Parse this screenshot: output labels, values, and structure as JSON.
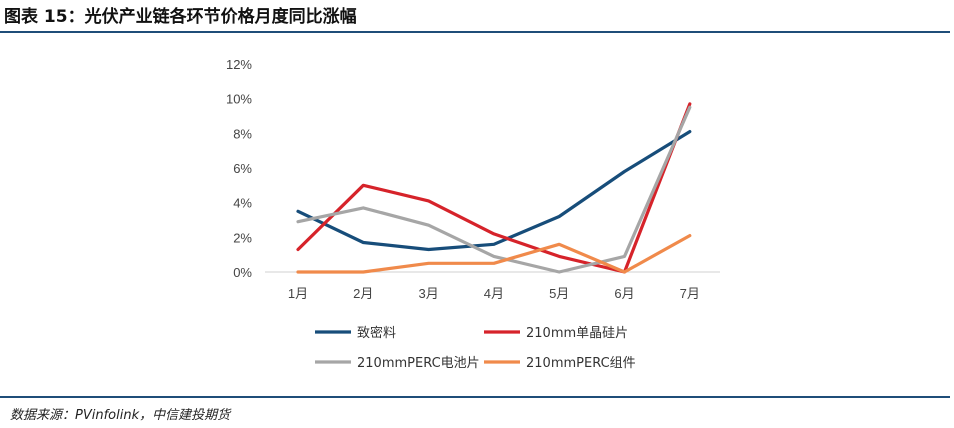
{
  "figure_title": "图表 15：光伏产业链各环节价格月度同比涨幅",
  "source": "数据来源：PVinfolink，中信建投期货",
  "chart_data": {
    "type": "line",
    "categories": [
      "1月",
      "2月",
      "3月",
      "4月",
      "5月",
      "6月",
      "7月"
    ],
    "ylim": [
      0,
      12
    ],
    "yticks": [
      "0%",
      "2%",
      "4%",
      "6%",
      "8%",
      "10%",
      "12%"
    ],
    "y_unit": "%",
    "grid": false,
    "legend_position": "bottom",
    "series": [
      {
        "name": "致密料",
        "color": "#174d7a",
        "values": [
          3.5,
          1.7,
          1.3,
          1.6,
          3.2,
          5.8,
          8.1
        ]
      },
      {
        "name": "210mm单晶硅片",
        "color": "#d6232a",
        "values": [
          1.3,
          5.0,
          4.1,
          2.2,
          0.9,
          0.0,
          9.7
        ]
      },
      {
        "name": "210mmPERC电池片",
        "color": "#a6a6a6",
        "values": [
          2.9,
          3.7,
          2.7,
          0.9,
          0.0,
          0.9,
          9.5
        ]
      },
      {
        "name": "210mmPERC组件",
        "color": "#f08a4b",
        "values": [
          0.0,
          0.0,
          0.5,
          0.5,
          1.6,
          0.0,
          2.1
        ]
      }
    ]
  }
}
